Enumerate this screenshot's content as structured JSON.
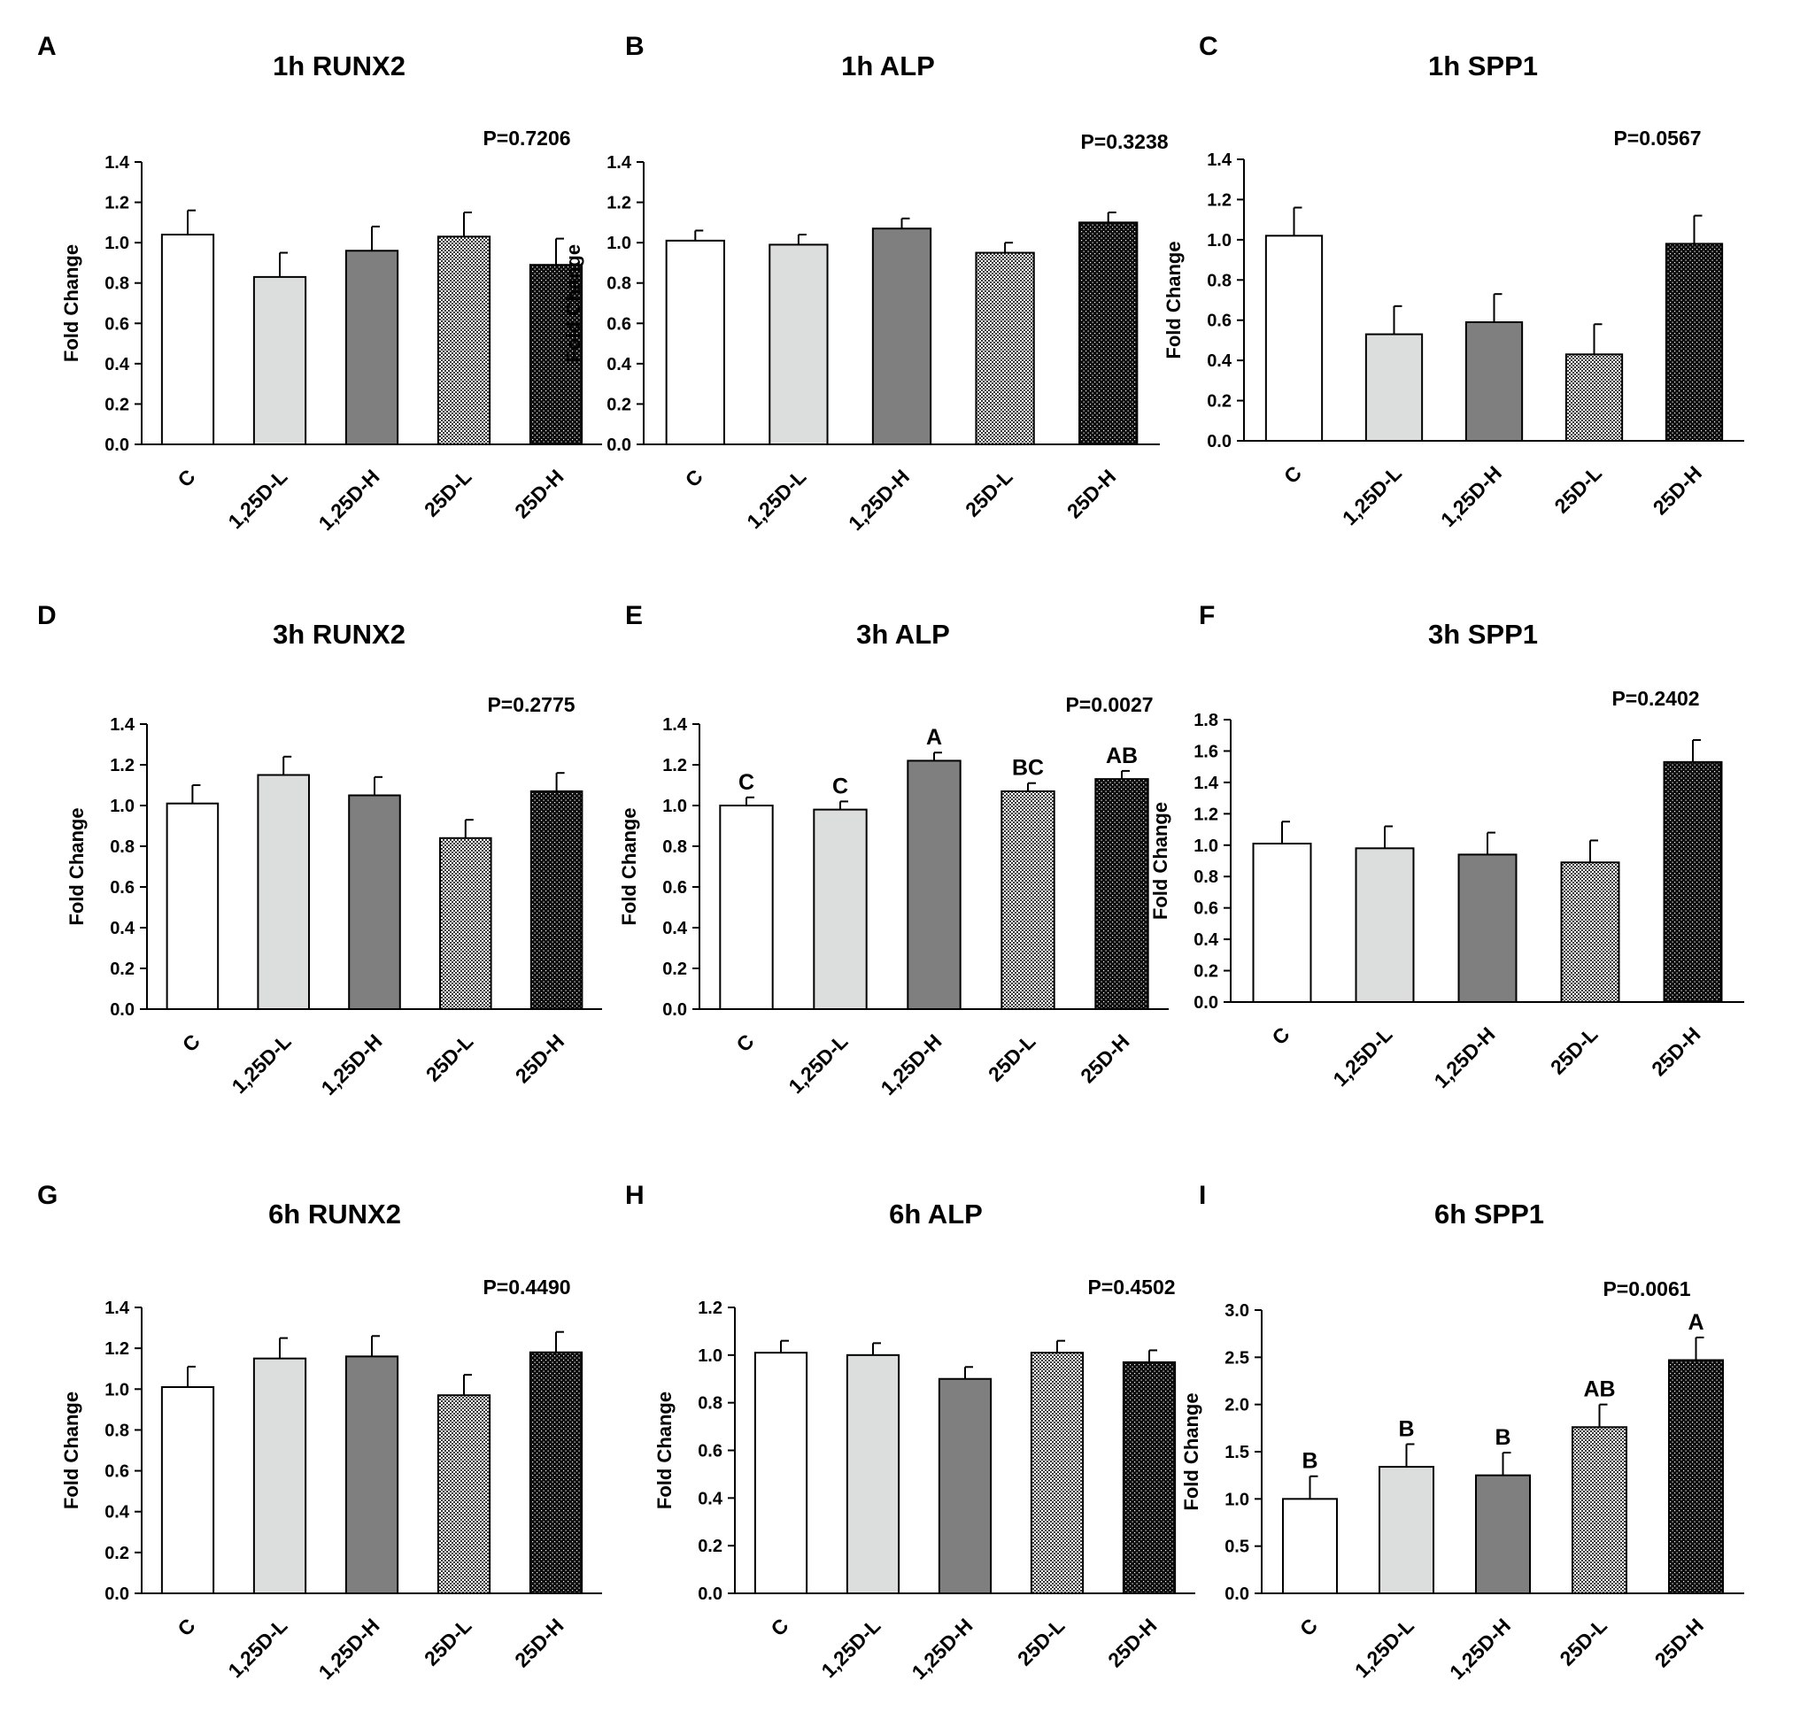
{
  "patterns": [
    "white-fill",
    "light-gray-fill",
    "dark-gray-fill",
    "fine-checker-fill",
    "dense-dots-fill"
  ],
  "chart_data": [
    {
      "panel": "A",
      "type": "bar",
      "title": "1h RUNX2",
      "ylabel": "Fold Change",
      "pvalue": "P=0.7206",
      "categories": [
        "C",
        "1,25D-L",
        "1,25D-H",
        "25D-L",
        "25D-H"
      ],
      "values": [
        1.04,
        0.83,
        0.96,
        1.03,
        0.89
      ],
      "errors": [
        0.12,
        0.12,
        0.12,
        0.12,
        0.13
      ],
      "ylim": [
        0,
        1.4
      ],
      "yticks": [
        "0.0",
        "0.2",
        "0.4",
        "0.6",
        "0.8",
        "1.0",
        "1.2",
        "1.4"
      ],
      "letters": [
        "",
        "",
        "",
        "",
        ""
      ]
    },
    {
      "panel": "B",
      "type": "bar",
      "title": "1h ALP",
      "ylabel": "Fold Change",
      "pvalue": "P=0.3238",
      "categories": [
        "C",
        "1,25D-L",
        "1,25D-H",
        "25D-L",
        "25D-H"
      ],
      "values": [
        1.01,
        0.99,
        1.07,
        0.95,
        1.1
      ],
      "errors": [
        0.05,
        0.05,
        0.05,
        0.05,
        0.05
      ],
      "ylim": [
        0,
        1.4
      ],
      "yticks": [
        "0.0",
        "0.2",
        "0.4",
        "0.6",
        "0.8",
        "1.0",
        "1.2",
        "1.4"
      ],
      "letters": [
        "",
        "",
        "",
        "",
        ""
      ]
    },
    {
      "panel": "C",
      "type": "bar",
      "title": "1h SPP1",
      "ylabel": "Fold Change",
      "pvalue": "P=0.0567",
      "categories": [
        "C",
        "1,25D-L",
        "1,25D-H",
        "25D-L",
        "25D-H"
      ],
      "values": [
        1.02,
        0.53,
        0.59,
        0.43,
        0.98
      ],
      "errors": [
        0.14,
        0.14,
        0.14,
        0.15,
        0.14
      ],
      "ylim": [
        0,
        1.4
      ],
      "yticks": [
        "0.0",
        "0.2",
        "0.4",
        "0.6",
        "0.8",
        "1.0",
        "1.2",
        "1.4"
      ],
      "letters": [
        "",
        "",
        "",
        "",
        ""
      ]
    },
    {
      "panel": "D",
      "type": "bar",
      "title": "3h RUNX2",
      "ylabel": "Fold Change",
      "pvalue": "P=0.2775",
      "categories": [
        "C",
        "1,25D-L",
        "1,25D-H",
        "25D-L",
        "25D-H"
      ],
      "values": [
        1.01,
        1.15,
        1.05,
        0.84,
        1.07
      ],
      "errors": [
        0.09,
        0.09,
        0.09,
        0.09,
        0.09
      ],
      "ylim": [
        0,
        1.4
      ],
      "yticks": [
        "0.0",
        "0.2",
        "0.4",
        "0.6",
        "0.8",
        "1.0",
        "1.2",
        "1.4"
      ],
      "letters": [
        "",
        "",
        "",
        "",
        ""
      ]
    },
    {
      "panel": "E",
      "type": "bar",
      "title": "3h ALP",
      "ylabel": "Fold Change",
      "pvalue": "P=0.0027",
      "categories": [
        "C",
        "1,25D-L",
        "1,25D-H",
        "25D-L",
        "25D-H"
      ],
      "values": [
        1.0,
        0.98,
        1.22,
        1.07,
        1.13
      ],
      "errors": [
        0.04,
        0.04,
        0.04,
        0.04,
        0.04
      ],
      "ylim": [
        0,
        1.4
      ],
      "yticks": [
        "0.0",
        "0.2",
        "0.4",
        "0.6",
        "0.8",
        "1.0",
        "1.2",
        "1.4"
      ],
      "letters": [
        "C",
        "C",
        "A",
        "BC",
        "AB"
      ]
    },
    {
      "panel": "F",
      "type": "bar",
      "title": "3h SPP1",
      "ylabel": "Fold Change",
      "pvalue": "P=0.2402",
      "categories": [
        "C",
        "1,25D-L",
        "1,25D-H",
        "25D-L",
        "25D-H"
      ],
      "values": [
        1.01,
        0.98,
        0.94,
        0.89,
        1.53
      ],
      "errors": [
        0.14,
        0.14,
        0.14,
        0.14,
        0.14
      ],
      "ylim": [
        0,
        1.8
      ],
      "yticks": [
        "0.0",
        "0.2",
        "0.4",
        "0.6",
        "0.8",
        "1.0",
        "1.2",
        "1.4",
        "1.6",
        "1.8"
      ],
      "letters": [
        "",
        "",
        "",
        "",
        ""
      ]
    },
    {
      "panel": "G",
      "type": "bar",
      "title": "6h RUNX2",
      "ylabel": "Fold Change",
      "pvalue": "P=0.4490",
      "categories": [
        "C",
        "1,25D-L",
        "1,25D-H",
        "25D-L",
        "25D-H"
      ],
      "values": [
        1.01,
        1.15,
        1.16,
        0.97,
        1.18
      ],
      "errors": [
        0.1,
        0.1,
        0.1,
        0.1,
        0.1
      ],
      "ylim": [
        0,
        1.4
      ],
      "yticks": [
        "0.0",
        "0.2",
        "0.4",
        "0.6",
        "0.8",
        "1.0",
        "1.2",
        "1.4"
      ],
      "letters": [
        "",
        "",
        "",
        "",
        ""
      ]
    },
    {
      "panel": "H",
      "type": "bar",
      "title": "6h ALP",
      "ylabel": "Fold Change",
      "pvalue": "P=0.4502",
      "categories": [
        "C",
        "1,25D-L",
        "1,25D-H",
        "25D-L",
        "25D-H"
      ],
      "values": [
        1.01,
        1.0,
        0.9,
        1.01,
        0.97
      ],
      "errors": [
        0.05,
        0.05,
        0.05,
        0.05,
        0.05
      ],
      "ylim": [
        0,
        1.2
      ],
      "yticks": [
        "0.0",
        "0.2",
        "0.4",
        "0.6",
        "0.8",
        "1.0",
        "1.2"
      ],
      "letters": [
        "",
        "",
        "",
        "",
        ""
      ]
    },
    {
      "panel": "I",
      "type": "bar",
      "title": "6h SPP1",
      "ylabel": "Fold Change",
      "pvalue": "P=0.0061",
      "categories": [
        "C",
        "1,25D-L",
        "1,25D-H",
        "25D-L",
        "25D-H"
      ],
      "values": [
        1.0,
        1.34,
        1.25,
        1.76,
        2.47
      ],
      "errors": [
        0.24,
        0.24,
        0.24,
        0.24,
        0.24
      ],
      "ylim": [
        0,
        3.0
      ],
      "yticks": [
        "0.0",
        "0.5",
        "1.0",
        "1.5",
        "2.0",
        "2.5",
        "3.0"
      ],
      "letters": [
        "B",
        "B",
        "B",
        "AB",
        "A"
      ]
    }
  ]
}
